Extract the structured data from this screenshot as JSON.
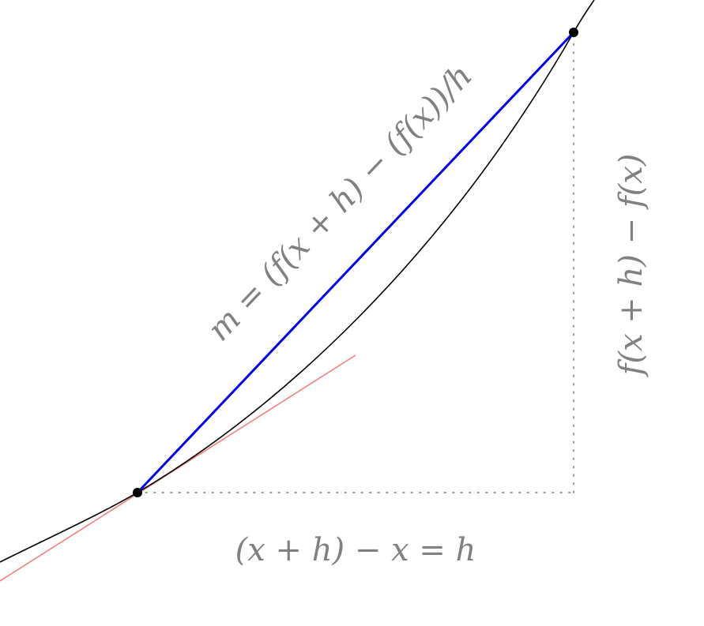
{
  "diagram": {
    "colors": {
      "curve": "#000000",
      "secant": "#0000ee",
      "tangent": "#f08080",
      "guides": "#999999",
      "label": "#808080",
      "point": "#000000"
    },
    "labels": {
      "slope": "m = (f(x + h) − (f(x))/h",
      "rise": "f(x + h) − f(x)",
      "run": "(x + h) − x = h"
    }
  }
}
